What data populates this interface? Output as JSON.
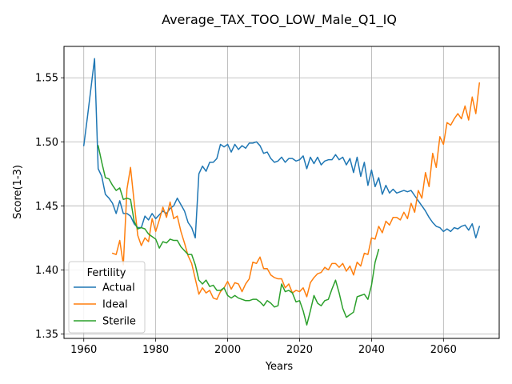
{
  "chart_data": {
    "type": "line",
    "title": "Average_TAX_TOO_LOW_Male_Q1_IQ",
    "xlabel": "Years",
    "ylabel": "Score(1-3)",
    "xlim": [
      1954.5,
      2075.5
    ],
    "ylim": [
      1.3465,
      1.5745
    ],
    "x_ticks": [
      1960,
      1980,
      2000,
      2020,
      2040,
      2060
    ],
    "y_ticks": [
      1.35,
      1.4,
      1.45,
      1.5,
      1.55
    ],
    "x_tick_labels": [
      "1960",
      "1980",
      "2000",
      "2020",
      "2040",
      "2060"
    ],
    "y_tick_labels": [
      "1.35",
      "1.40",
      "1.45",
      "1.50",
      "1.55"
    ],
    "grid": true,
    "legend": {
      "title": "Fertility",
      "placement": "lower-left"
    },
    "colors": {
      "Actual": "#1f77b4",
      "Ideal": "#ff7f0e",
      "Sterile": "#2ca02c"
    },
    "series": [
      {
        "name": "Actual",
        "x_start": 1960,
        "values": [
          1.497,
          1.519,
          1.542,
          1.565,
          1.479,
          1.473,
          1.459,
          1.456,
          1.452,
          1.444,
          1.454,
          1.444,
          1.444,
          1.442,
          1.436,
          1.433,
          1.433,
          1.442,
          1.439,
          1.444,
          1.44,
          1.443,
          1.446,
          1.444,
          1.448,
          1.45,
          1.456,
          1.451,
          1.446,
          1.437,
          1.433,
          1.425,
          1.475,
          1.481,
          1.477,
          1.484,
          1.484,
          1.487,
          1.498,
          1.496,
          1.498,
          1.492,
          1.498,
          1.494,
          1.497,
          1.495,
          1.499,
          1.499,
          1.5,
          1.497,
          1.491,
          1.492,
          1.487,
          1.484,
          1.485,
          1.488,
          1.484,
          1.487,
          1.487,
          1.485,
          1.486,
          1.489,
          1.479,
          1.488,
          1.483,
          1.488,
          1.482,
          1.485,
          1.486,
          1.486,
          1.49,
          1.486,
          1.488,
          1.482,
          1.487,
          1.476,
          1.488,
          1.473,
          1.484,
          1.466,
          1.478,
          1.465,
          1.472,
          1.459,
          1.466,
          1.46,
          1.463,
          1.46,
          1.461,
          1.462,
          1.461,
          1.462,
          1.458,
          1.454,
          1.45,
          1.446,
          1.441,
          1.437,
          1.434,
          1.433,
          1.43,
          1.432,
          1.43,
          1.433,
          1.432,
          1.434,
          1.435,
          1.431,
          1.436,
          1.425,
          1.434
        ]
      },
      {
        "name": "Ideal",
        "x_start": 1968,
        "values": [
          1.413,
          1.412,
          1.423,
          1.404,
          1.463,
          1.48,
          1.453,
          1.427,
          1.419,
          1.425,
          1.422,
          1.44,
          1.43,
          1.439,
          1.449,
          1.441,
          1.453,
          1.44,
          1.442,
          1.43,
          1.421,
          1.411,
          1.405,
          1.393,
          1.381,
          1.386,
          1.382,
          1.384,
          1.378,
          1.377,
          1.383,
          1.386,
          1.391,
          1.385,
          1.39,
          1.389,
          1.383,
          1.389,
          1.393,
          1.406,
          1.405,
          1.41,
          1.401,
          1.401,
          1.396,
          1.394,
          1.393,
          1.393,
          1.386,
          1.389,
          1.382,
          1.384,
          1.383,
          1.386,
          1.379,
          1.39,
          1.394,
          1.397,
          1.398,
          1.402,
          1.4,
          1.405,
          1.405,
          1.402,
          1.405,
          1.399,
          1.403,
          1.396,
          1.406,
          1.403,
          1.413,
          1.412,
          1.425,
          1.424,
          1.434,
          1.429,
          1.438,
          1.435,
          1.441,
          1.441,
          1.439,
          1.445,
          1.44,
          1.452,
          1.445,
          1.462,
          1.456,
          1.476,
          1.465,
          1.491,
          1.48,
          1.504,
          1.498,
          1.515,
          1.513,
          1.518,
          1.522,
          1.518,
          1.528,
          1.517,
          1.535,
          1.522,
          1.546
        ]
      },
      {
        "name": "Sterile",
        "x_start": 1964,
        "values": [
          1.497,
          1.484,
          1.472,
          1.471,
          1.466,
          1.462,
          1.464,
          1.455,
          1.456,
          1.455,
          1.438,
          1.432,
          1.433,
          1.432,
          1.428,
          1.426,
          1.424,
          1.417,
          1.422,
          1.421,
          1.424,
          1.423,
          1.423,
          1.418,
          1.415,
          1.412,
          1.412,
          1.404,
          1.392,
          1.389,
          1.392,
          1.387,
          1.388,
          1.384,
          1.384,
          1.386,
          1.38,
          1.378,
          1.38,
          1.378,
          1.377,
          1.376,
          1.376,
          1.377,
          1.377,
          1.375,
          1.372,
          1.376,
          1.374,
          1.371,
          1.372,
          1.389,
          1.383,
          1.384,
          1.382,
          1.375,
          1.376,
          1.368,
          1.357,
          1.368,
          1.38,
          1.374,
          1.372,
          1.376,
          1.377,
          1.385,
          1.392,
          1.382,
          1.37,
          1.363,
          1.365,
          1.367,
          1.379,
          1.38,
          1.381,
          1.377,
          1.388,
          1.406,
          1.416
        ]
      }
    ]
  }
}
